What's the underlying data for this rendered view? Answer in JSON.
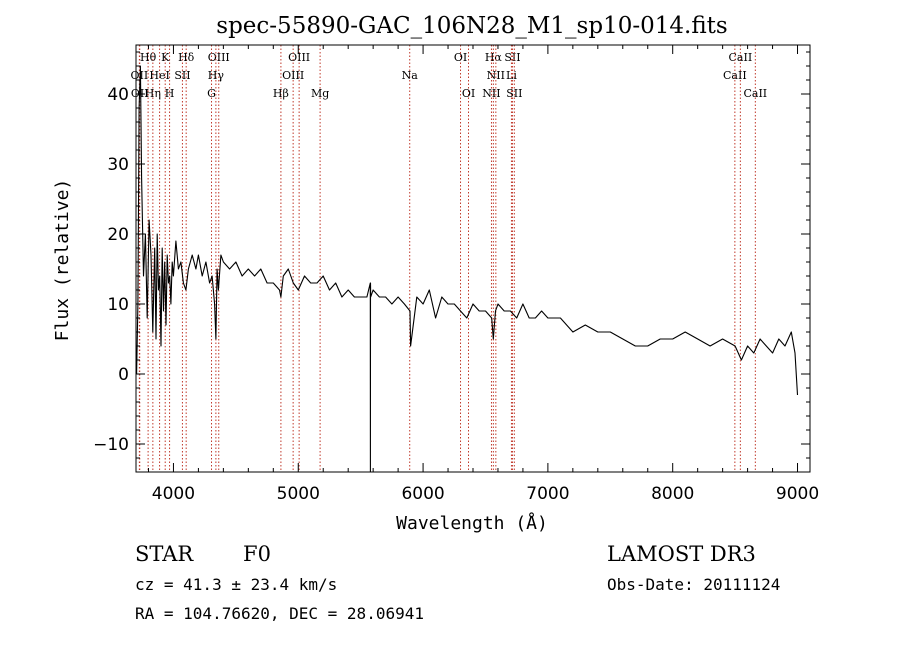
{
  "chart_data": {
    "type": "line",
    "title": "spec-55890-GAC_106N28_M1_sp10-014.fits",
    "xlabel": "Wavelength (Å)",
    "ylabel": "Flux (relative)",
    "xlim": [
      3700,
      9100
    ],
    "ylim": [
      -14,
      47
    ],
    "xticks": [
      4000,
      5000,
      6000,
      7000,
      8000,
      9000
    ],
    "yticks": [
      -10,
      0,
      10,
      20,
      30,
      40
    ],
    "series": [
      {
        "name": "flux",
        "x": [
          3705,
          3715,
          3725,
          3735,
          3745,
          3760,
          3775,
          3790,
          3805,
          3820,
          3835,
          3850,
          3860,
          3870,
          3880,
          3890,
          3900,
          3910,
          3920,
          3930,
          3940,
          3950,
          3960,
          3970,
          3980,
          3990,
          4000,
          4020,
          4040,
          4060,
          4080,
          4100,
          4120,
          4150,
          4180,
          4200,
          4230,
          4260,
          4290,
          4310,
          4330,
          4340,
          4350,
          4360,
          4380,
          4400,
          4450,
          4500,
          4550,
          4600,
          4650,
          4700,
          4750,
          4800,
          4850,
          4861,
          4880,
          4920,
          4960,
          5000,
          5050,
          5100,
          5150,
          5200,
          5250,
          5300,
          5350,
          5400,
          5450,
          5500,
          5550,
          5577,
          5578,
          5579,
          5580,
          5600,
          5650,
          5700,
          5750,
          5800,
          5850,
          5895,
          5900,
          5950,
          6000,
          6050,
          6100,
          6150,
          6200,
          6250,
          6300,
          6350,
          6400,
          6450,
          6500,
          6550,
          6563,
          6580,
          6600,
          6650,
          6700,
          6750,
          6800,
          6850,
          6900,
          6950,
          7000,
          7100,
          7200,
          7300,
          7400,
          7500,
          7600,
          7700,
          7800,
          7900,
          8000,
          8100,
          8200,
          8300,
          8400,
          8500,
          8550,
          8600,
          8650,
          8700,
          8750,
          8800,
          8850,
          8900,
          8950,
          8980,
          9000
        ],
        "y": [
          0,
          10,
          38,
          44,
          28,
          14,
          20,
          8,
          22,
          17,
          6,
          18,
          5,
          20,
          12,
          14,
          4,
          18,
          9,
          16,
          7,
          17,
          13,
          14,
          10,
          16,
          14,
          19,
          15,
          16,
          13,
          12,
          15,
          17,
          15,
          17,
          14,
          16,
          13,
          14,
          10,
          5,
          15,
          12,
          17,
          16,
          15,
          16,
          14,
          15,
          14,
          15,
          13,
          13,
          12,
          11,
          14,
          15,
          13,
          12,
          14,
          13,
          13,
          14,
          12,
          13,
          11,
          12,
          11,
          11,
          11,
          13,
          -14,
          13,
          11,
          12,
          11,
          11,
          10,
          11,
          10,
          9,
          4,
          11,
          10,
          12,
          8,
          11,
          10,
          10,
          9,
          8,
          10,
          9,
          9,
          8,
          5,
          9,
          10,
          9,
          9,
          8,
          10,
          8,
          8,
          9,
          8,
          8,
          6,
          7,
          6,
          6,
          5,
          4,
          4,
          5,
          5,
          6,
          5,
          4,
          5,
          4,
          2,
          4,
          3,
          5,
          4,
          3,
          5,
          4,
          6,
          3,
          -3
        ]
      }
    ],
    "lines_top": [
      {
        "label": "Hθ",
        "x": 3797
      },
      {
        "label": "K",
        "x": 3934
      },
      {
        "label": "Hδ",
        "x": 4102
      },
      {
        "label": "OIII",
        "x": 4363
      },
      {
        "label": "OIII",
        "x": 5007
      },
      {
        "label": "OI",
        "x": 6300
      },
      {
        "label": "Hα",
        "x": 6563
      },
      {
        "label": "SII",
        "x": 6716
      },
      {
        "label": "CaII",
        "x": 8542
      }
    ],
    "lines_mid": [
      {
        "label": "OII",
        "x": 3727
      },
      {
        "label": "HeI",
        "x": 3889
      },
      {
        "label": "SII",
        "x": 4072
      },
      {
        "label": "Hγ",
        "x": 4340
      },
      {
        "label": "OIII",
        "x": 4959
      },
      {
        "label": "Na",
        "x": 5893
      },
      {
        "label": "NII",
        "x": 6583
      },
      {
        "label": "Li",
        "x": 6708
      },
      {
        "label": "CaII",
        "x": 8498
      }
    ],
    "lines_low": [
      {
        "label": "OII",
        "x": 3730
      },
      {
        "label": "Hη",
        "x": 3835
      },
      {
        "label": "H",
        "x": 3969
      },
      {
        "label": "G",
        "x": 4305
      },
      {
        "label": "Hβ",
        "x": 4861
      },
      {
        "label": "Mg",
        "x": 5175
      },
      {
        "label": "OI",
        "x": 6364
      },
      {
        "label": "NII",
        "x": 6548
      },
      {
        "label": "SII",
        "x": 6731
      },
      {
        "label": "CaII",
        "x": 8662
      }
    ]
  },
  "info": {
    "object_class": "STAR",
    "subclass": "F0",
    "survey": "LAMOST DR3",
    "cz": "cz = 41.3 ± 23.4 km/s",
    "obs_date": "Obs-Date: 20111124",
    "coords": "RA = 104.76620, DEC =  28.06941"
  }
}
